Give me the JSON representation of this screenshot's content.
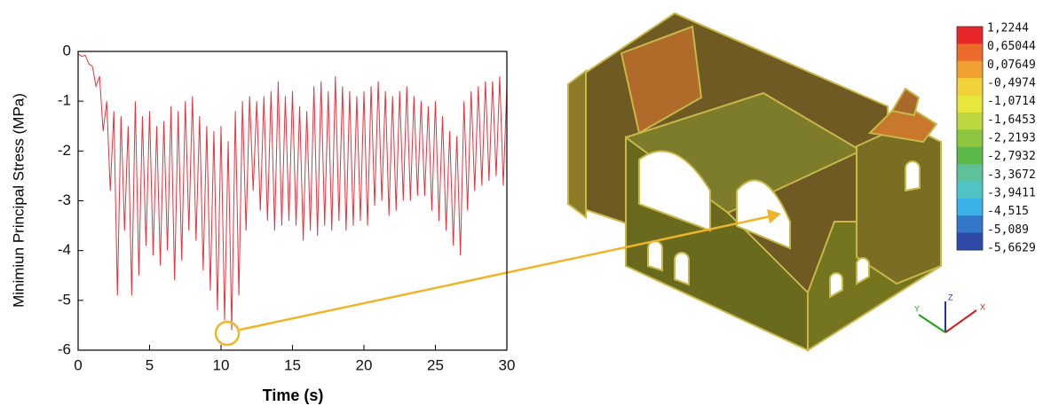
{
  "chart_data": {
    "type": "line",
    "x_label": "Time (s)",
    "y_label": "Minimiun Principal Stress (MPa)",
    "xlim": [
      0,
      30
    ],
    "ylim": [
      -6,
      0
    ],
    "xticks": [
      0,
      5,
      10,
      15,
      20,
      25,
      30
    ],
    "yticks": [
      0,
      -1,
      -2,
      -3,
      -4,
      -5,
      -6
    ],
    "color": "#e8323c",
    "x": [
      0,
      0.25,
      0.5,
      0.75,
      1,
      1.25,
      1.5,
      1.75,
      2,
      2.25,
      2.5,
      2.75,
      3,
      3.25,
      3.5,
      3.75,
      4,
      4.25,
      4.5,
      4.75,
      5,
      5.25,
      5.5,
      5.75,
      6,
      6.25,
      6.5,
      6.75,
      7,
      7.25,
      7.5,
      7.75,
      8,
      8.25,
      8.5,
      8.75,
      9,
      9.25,
      9.5,
      9.75,
      10,
      10.25,
      10.5,
      10.75,
      11,
      11.25,
      11.5,
      11.75,
      12,
      12.25,
      12.5,
      12.75,
      13,
      13.25,
      13.5,
      13.75,
      14,
      14.25,
      14.5,
      14.75,
      15,
      15.25,
      15.5,
      15.75,
      16,
      16.25,
      16.5,
      16.75,
      17,
      17.25,
      17.5,
      17.75,
      18,
      18.25,
      18.5,
      18.75,
      19,
      19.25,
      19.5,
      19.75,
      20,
      20.25,
      20.5,
      20.75,
      21,
      21.25,
      21.5,
      21.75,
      22,
      22.25,
      22.5,
      22.75,
      23,
      23.25,
      23.5,
      23.75,
      24,
      24.25,
      24.5,
      24.75,
      25,
      25.25,
      25.5,
      25.75,
      26,
      26.25,
      26.5,
      26.75,
      27,
      27.25,
      27.5,
      27.75,
      28,
      28.25,
      28.5,
      28.75,
      29,
      29.25,
      29.5,
      29.75,
      30
    ],
    "values": [
      -0.05,
      -0.1,
      -0.08,
      -0.25,
      -0.3,
      -0.7,
      -0.5,
      -1.6,
      -1.0,
      -2.8,
      -1.2,
      -4.9,
      -1.3,
      -3.6,
      -1.5,
      -4.9,
      -1.0,
      -4.5,
      -1.3,
      -3.9,
      -1.2,
      -4.1,
      -1.5,
      -4.3,
      -1.4,
      -4.0,
      -1.1,
      -4.6,
      -1.2,
      -4.2,
      -1.0,
      -3.6,
      -0.9,
      -3.8,
      -1.3,
      -4.4,
      -1.5,
      -4.8,
      -1.6,
      -5.2,
      -1.5,
      -5.4,
      -1.8,
      -5.6,
      -1.2,
      -4.9,
      -1.0,
      -3.6,
      -0.9,
      -2.8,
      -1.0,
      -3.2,
      -0.9,
      -3.4,
      -0.8,
      -3.6,
      -0.6,
      -3.5,
      -0.9,
      -3.4,
      -0.8,
      -3.5,
      -1.1,
      -3.8,
      -1.2,
      -3.6,
      -0.7,
      -3.7,
      -0.6,
      -3.5,
      -0.8,
      -3.6,
      -0.5,
      -3.4,
      -0.7,
      -3.6,
      -0.8,
      -3.5,
      -0.9,
      -3.4,
      -0.8,
      -3.5,
      -0.7,
      -3.1,
      -0.6,
      -3.0,
      -0.8,
      -3.3,
      -0.9,
      -3.2,
      -0.8,
      -3.0,
      -0.7,
      -3.0,
      -0.9,
      -2.9,
      -1.0,
      -2.9,
      -1.1,
      -3.2,
      -1.0,
      -3.4,
      -1.3,
      -3.6,
      -1.6,
      -3.9,
      -1.7,
      -4.1,
      -1.0,
      -3.2,
      -0.8,
      -2.8,
      -0.7,
      -2.7,
      -0.6,
      -2.6,
      -0.6,
      -2.5,
      -0.5,
      -2.7,
      -0.7
    ],
    "colorbar": {
      "labels": [
        "1,2244",
        "0,65044",
        "0,07649",
        "-0,4974",
        "-1,0714",
        "-1,6453",
        "-2,2193",
        "-2,7932",
        "-3,3672",
        "-3,9411",
        "-4,515",
        "-5,089",
        "-5,6629"
      ],
      "colors": [
        "#e8262a",
        "#ec6a2a",
        "#f0a030",
        "#f2d23a",
        "#e6e63c",
        "#bcd83e",
        "#8cc63f",
        "#5db84a",
        "#5fc19a",
        "#4fc3c6",
        "#3ab0e6",
        "#3378c8",
        "#2e4aa6"
      ]
    },
    "axes_labels": [
      "Y",
      "Z",
      "X"
    ]
  }
}
